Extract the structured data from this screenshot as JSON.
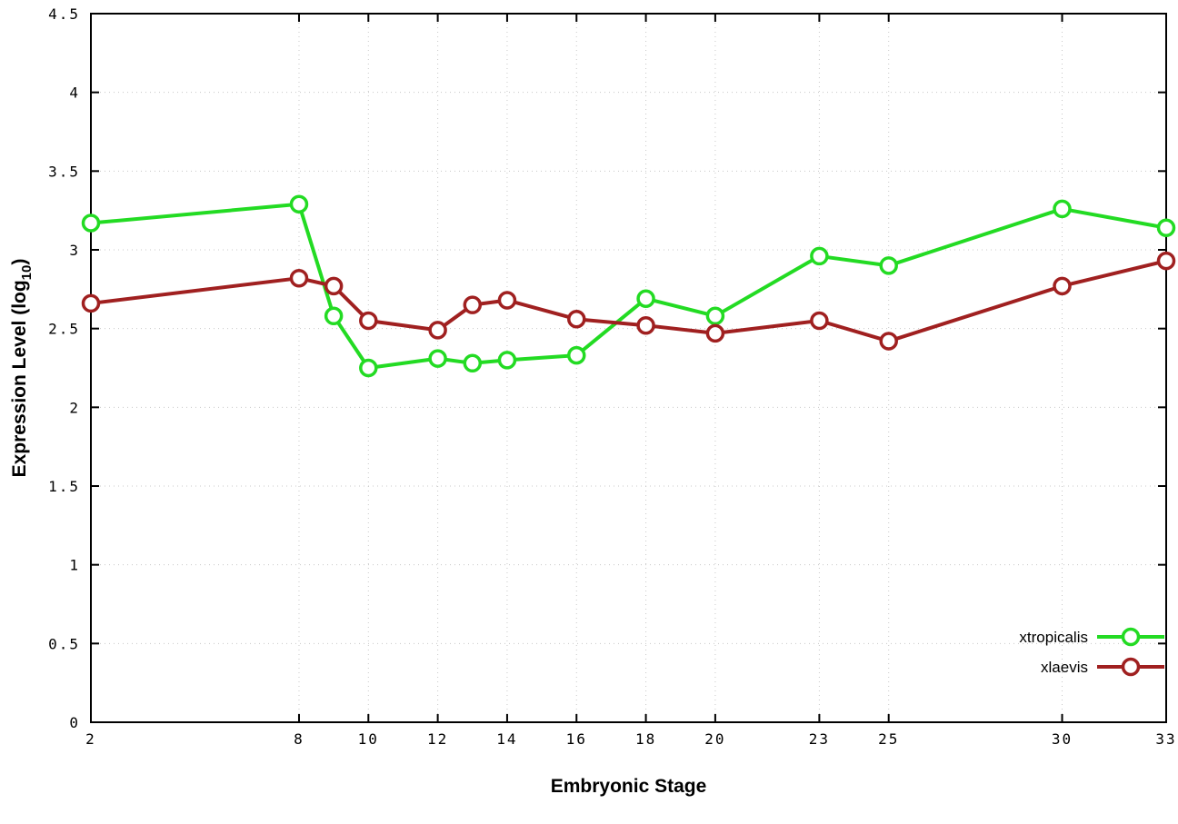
{
  "chart_data": {
    "type": "line",
    "title": "",
    "xlabel": "Embryonic Stage",
    "ylabel": "Expression Level (log10)",
    "ylabel_parts": {
      "pre": "Expression Level (log",
      "sub": "10",
      "post": ")"
    },
    "xlim": [
      2,
      33
    ],
    "ylim": [
      0,
      4.5
    ],
    "xticks": [
      2,
      8,
      10,
      12,
      14,
      16,
      18,
      20,
      23,
      25,
      30,
      33
    ],
    "yticks": [
      0,
      0.5,
      1,
      1.5,
      2,
      2.5,
      3,
      3.5,
      4,
      4.5
    ],
    "grid": true,
    "legend_position": "bottom-right",
    "x": [
      2,
      8,
      9,
      10,
      12,
      13,
      14,
      16,
      18,
      20,
      23,
      25,
      30,
      33
    ],
    "series": [
      {
        "name": "xtropicalis",
        "color": "#23db23",
        "values": [
          3.17,
          3.29,
          2.58,
          2.25,
          2.31,
          2.28,
          2.3,
          2.33,
          2.69,
          2.58,
          2.96,
          2.9,
          3.26,
          3.14
        ]
      },
      {
        "name": "xlaevis",
        "color": "#a02020",
        "values": [
          2.66,
          2.82,
          2.77,
          2.55,
          2.49,
          2.65,
          2.68,
          2.56,
          2.52,
          2.47,
          2.55,
          2.42,
          2.77,
          2.93
        ]
      }
    ]
  },
  "style": {
    "grid_color": "#c8c8c8",
    "border_color": "#000000",
    "background": "#ffffff",
    "marker_fill": "#ffffff"
  }
}
